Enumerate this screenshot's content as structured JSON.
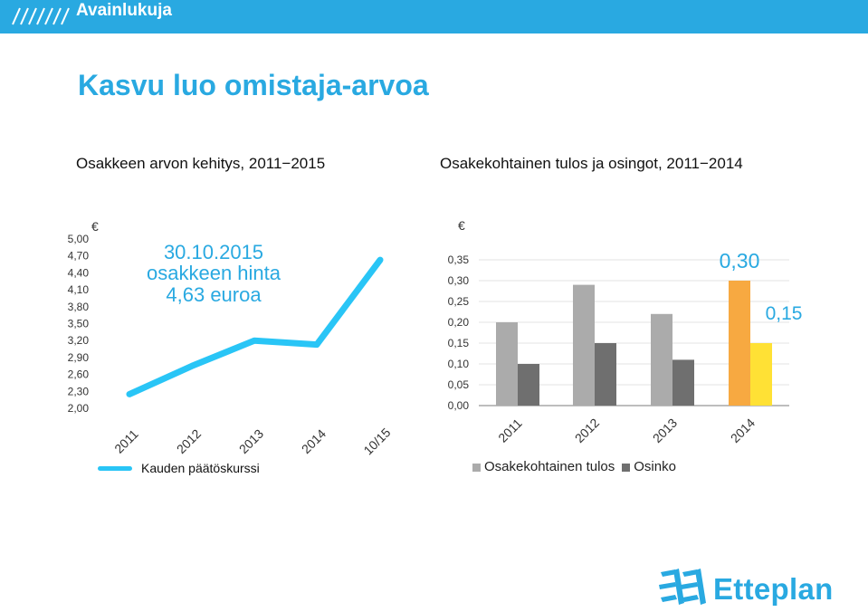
{
  "header": {
    "section_label": "Avainlukuja",
    "title": "Kasvu luo omistaja-arvoa"
  },
  "left_chart": {
    "title": "Osakkeen arvon kehitys, 2011−2015",
    "currency": "€",
    "annotation": [
      "30.10.2015",
      "osakkeen hinta",
      "4,63 euroa"
    ],
    "legend": "Kauden päätöskurssi"
  },
  "right_chart": {
    "title": "Osakekohtainen tulos ja osingot, 2011−2014",
    "currency": "€",
    "callout_eps": "0,30",
    "callout_div": "0,15",
    "legend_eps": "Osakekohtainen tulos",
    "legend_div": "Osinko"
  },
  "logo": {
    "wordmark": "Etteplan"
  },
  "colors": {
    "accent": "#29a9e1",
    "line": "#29c5f6",
    "eps": "#ababab",
    "div": "#6f6f6f",
    "eps_highlight": "#f7a941",
    "div_highlight": "#ffe135"
  },
  "chart_data": [
    {
      "type": "line",
      "title": "Osakkeen arvon kehitys, 2011−2015",
      "categories": [
        "2011",
        "2012",
        "2013",
        "2014",
        "10/15"
      ],
      "series": [
        {
          "name": "Kauden päätöskurssi",
          "values": [
            2.25,
            2.75,
            3.2,
            3.13,
            4.63
          ]
        }
      ],
      "yticks": [
        "2,00",
        "2,30",
        "2,60",
        "2,90",
        "3,20",
        "3,50",
        "3,80",
        "4,10",
        "4,40",
        "4,70",
        "5,00"
      ],
      "ylim": [
        2.0,
        5.0
      ],
      "ylabel": "€",
      "grid": false,
      "legend": "bottom-left"
    },
    {
      "type": "bar",
      "title": "Osakekohtainen tulos ja osingot, 2011−2014",
      "categories": [
        "2011",
        "2012",
        "2013",
        "2014"
      ],
      "series": [
        {
          "name": "Osakekohtainen tulos",
          "values": [
            0.2,
            0.29,
            0.22,
            0.3
          ]
        },
        {
          "name": "Osinko",
          "values": [
            0.1,
            0.15,
            0.11,
            0.15
          ]
        }
      ],
      "yticks": [
        "0,00",
        "0,05",
        "0,10",
        "0,15",
        "0,20",
        "0,25",
        "0,30",
        "0,35"
      ],
      "ylim": [
        0,
        0.35
      ],
      "ylabel": "€",
      "grid": true,
      "legend": "bottom"
    }
  ]
}
